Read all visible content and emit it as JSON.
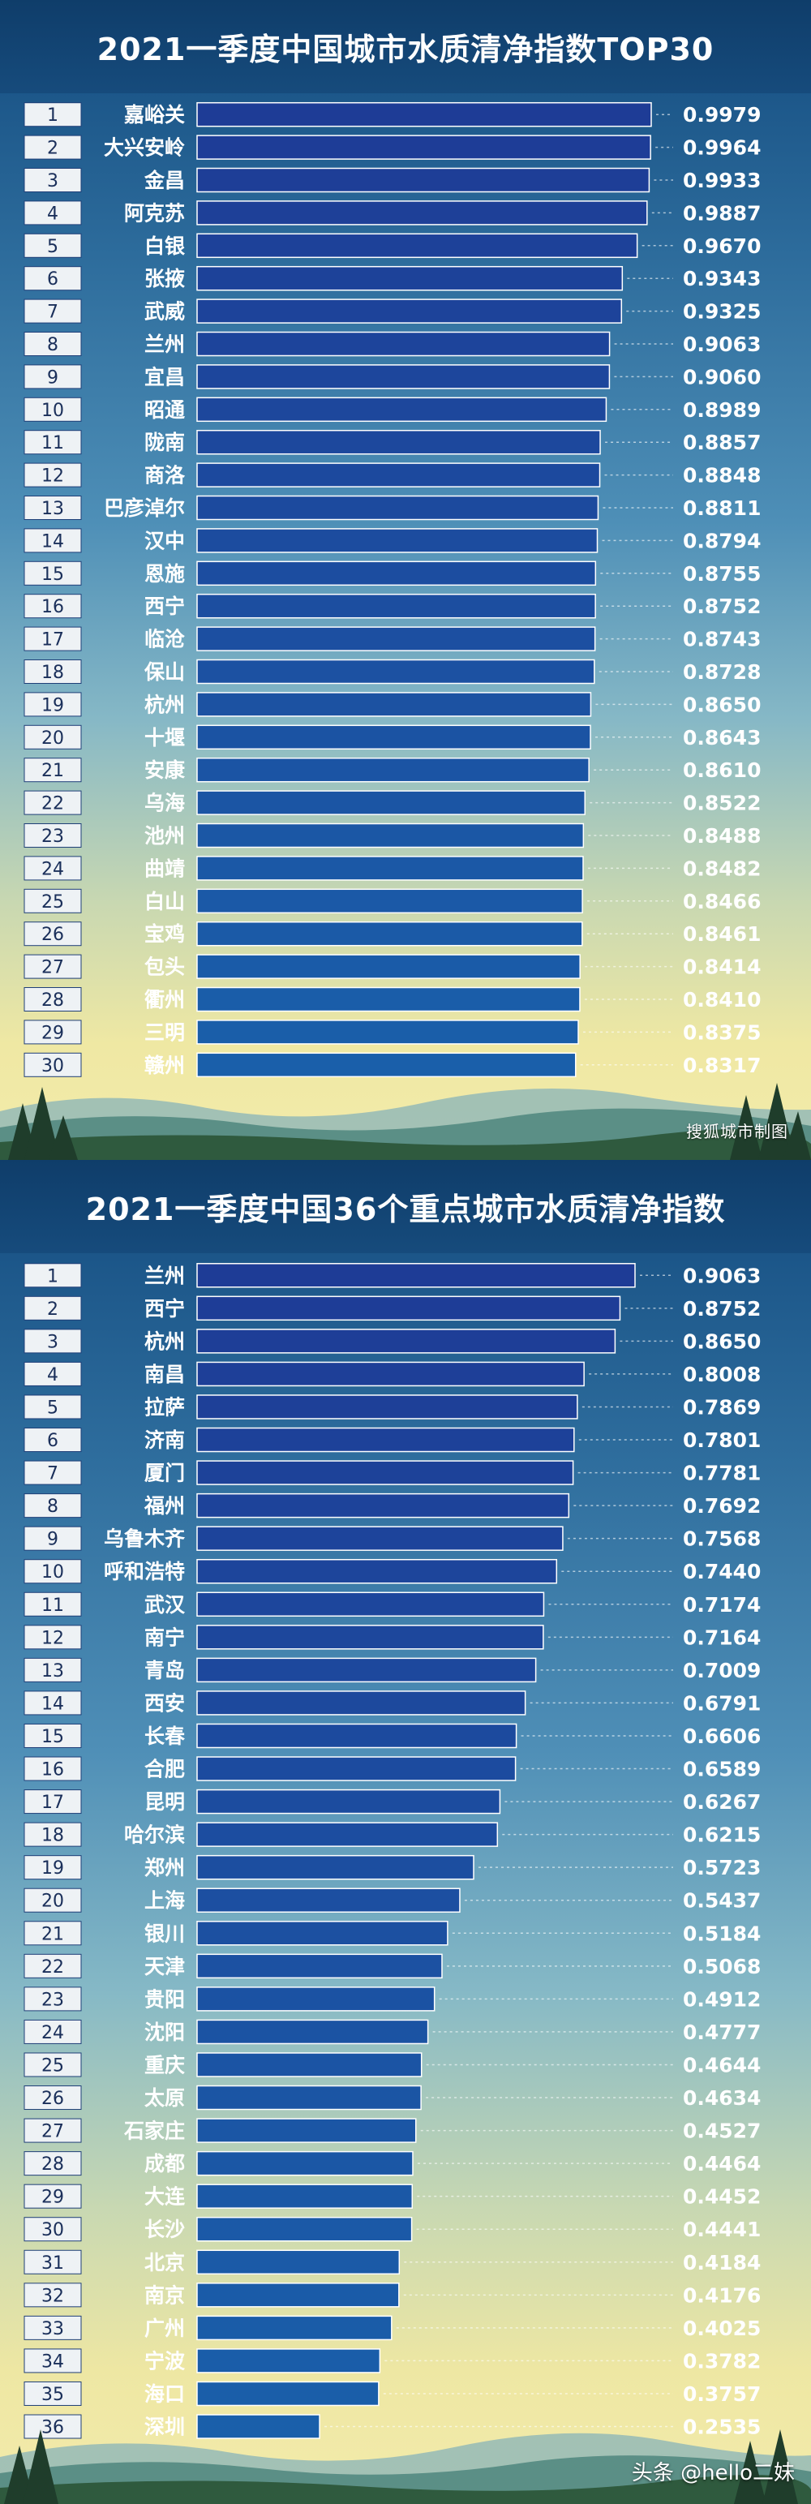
{
  "chart_data": [
    {
      "type": "bar",
      "orientation": "horizontal",
      "title": "2021一季度中国城市水质清净指数TOP30",
      "ranks": [
        "1",
        "2",
        "3",
        "4",
        "5",
        "6",
        "7",
        "8",
        "9",
        "10",
        "11",
        "12",
        "13",
        "14",
        "15",
        "16",
        "17",
        "18",
        "19",
        "20",
        "21",
        "22",
        "23",
        "24",
        "25",
        "26",
        "27",
        "28",
        "29",
        "30"
      ],
      "categories": [
        "嘉峪关",
        "大兴安岭",
        "金昌",
        "阿克苏",
        "白银",
        "张掖",
        "武威",
        "兰州",
        "宜昌",
        "昭通",
        "陇南",
        "商洛",
        "巴彦淖尔",
        "汉中",
        "恩施",
        "西宁",
        "临沧",
        "保山",
        "杭州",
        "十堰",
        "安康",
        "乌海",
        "池州",
        "曲靖",
        "白山",
        "宝鸡",
        "包头",
        "衢州",
        "三明",
        "赣州"
      ],
      "values": [
        0.9979,
        0.9964,
        0.9933,
        0.9887,
        0.967,
        0.9343,
        0.9325,
        0.9063,
        0.906,
        0.8989,
        0.8857,
        0.8848,
        0.8811,
        0.8794,
        0.8755,
        0.8752,
        0.8743,
        0.8728,
        0.865,
        0.8643,
        0.861,
        0.8522,
        0.8488,
        0.8482,
        0.8466,
        0.8461,
        0.8414,
        0.841,
        0.8375,
        0.8317
      ],
      "value_labels": [
        "0.9979",
        "0.9964",
        "0.9933",
        "0.9887",
        "0.9670",
        "0.9343",
        "0.9325",
        "0.9063",
        "0.9060",
        "0.8989",
        "0.8857",
        "0.8848",
        "0.8811",
        "0.8794",
        "0.8755",
        "0.8752",
        "0.8743",
        "0.8728",
        "0.8650",
        "0.8643",
        "0.8610",
        "0.8522",
        "0.8488",
        "0.8482",
        "0.8466",
        "0.8461",
        "0.8414",
        "0.8410",
        "0.8375",
        "0.8317"
      ],
      "xlim": [
        0,
        1
      ],
      "grid": false,
      "bar_color_top": "#1e3c96",
      "bar_color_bottom": "#1a5fa8"
    },
    {
      "type": "bar",
      "orientation": "horizontal",
      "title": "2021一季度中国36个重点城市水质清净指数",
      "ranks": [
        "1",
        "2",
        "3",
        "4",
        "5",
        "6",
        "7",
        "8",
        "9",
        "10",
        "11",
        "12",
        "13",
        "14",
        "15",
        "16",
        "17",
        "18",
        "19",
        "20",
        "21",
        "22",
        "23",
        "24",
        "25",
        "26",
        "27",
        "28",
        "29",
        "30",
        "31",
        "32",
        "33",
        "34",
        "35",
        "36"
      ],
      "categories": [
        "兰州",
        "西宁",
        "杭州",
        "南昌",
        "拉萨",
        "济南",
        "厦门",
        "福州",
        "乌鲁木齐",
        "呼和浩特",
        "武汉",
        "南宁",
        "青岛",
        "西安",
        "长春",
        "合肥",
        "昆明",
        "哈尔滨",
        "郑州",
        "上海",
        "银川",
        "天津",
        "贵阳",
        "沈阳",
        "重庆",
        "太原",
        "石家庄",
        "成都",
        "大连",
        "长沙",
        "北京",
        "南京",
        "广州",
        "宁波",
        "海口",
        "深圳"
      ],
      "values": [
        0.9063,
        0.8752,
        0.865,
        0.8008,
        0.7869,
        0.7801,
        0.7781,
        0.7692,
        0.7568,
        0.744,
        0.7174,
        0.7164,
        0.7009,
        0.6791,
        0.6606,
        0.6589,
        0.6267,
        0.6215,
        0.5723,
        0.5437,
        0.5184,
        0.5068,
        0.4912,
        0.4777,
        0.4644,
        0.4634,
        0.4527,
        0.4464,
        0.4452,
        0.4441,
        0.4184,
        0.4176,
        0.4025,
        0.3782,
        0.3757,
        0.2535
      ],
      "value_labels": [
        "0.9063",
        "0.8752",
        "0.8650",
        "0.8008",
        "0.7869",
        "0.7801",
        "0.7781",
        "0.7692",
        "0.7568",
        "0.7440",
        "0.7174",
        "0.7164",
        "0.7009",
        "0.6791",
        "0.6606",
        "0.6589",
        "0.6267",
        "0.6215",
        "0.5723",
        "0.5437",
        "0.5184",
        "0.5068",
        "0.4912",
        "0.4777",
        "0.4644",
        "0.4634",
        "0.4527",
        "0.4464",
        "0.4452",
        "0.4441",
        "0.4184",
        "0.4176",
        "0.4025",
        "0.3782",
        "0.3757",
        "0.2535"
      ],
      "xlim": [
        0,
        1
      ],
      "grid": false,
      "bar_color_top": "#1e3c96",
      "bar_color_bottom": "#1a5fa8"
    }
  ],
  "credit": "搜狐城市制图",
  "watermark": "头条 @hello二妹"
}
